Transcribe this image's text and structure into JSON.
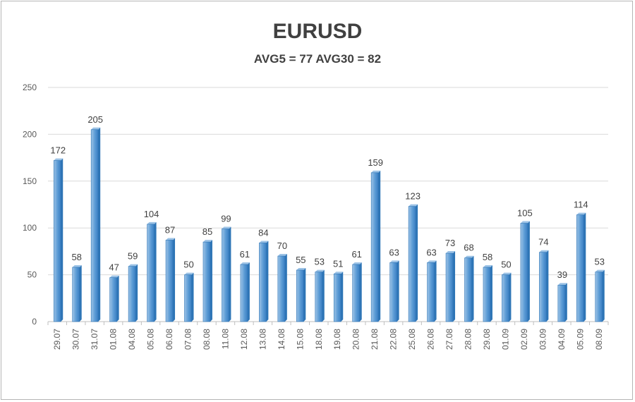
{
  "chart_data": {
    "type": "bar",
    "title": "EURUSD",
    "subtitle": "AVG5 = 77 AVG30 = 82",
    "xlabel": "",
    "ylabel": "",
    "ylim": [
      0,
      250
    ],
    "yticks": [
      0,
      50,
      100,
      150,
      200,
      250
    ],
    "grid": true,
    "legend": "none",
    "categories": [
      "29.07",
      "30.07",
      "31.07",
      "01.08",
      "04.08",
      "05.08",
      "06.08",
      "07.08",
      "08.08",
      "11.08",
      "12.08",
      "13.08",
      "14.08",
      "15.08",
      "18.08",
      "19.08",
      "20.08",
      "21.08",
      "22.08",
      "25.08",
      "26.08",
      "27.08",
      "28.08",
      "29.08",
      "01.09",
      "02.09",
      "03.09",
      "04.09",
      "05.09",
      "08.09"
    ],
    "values": [
      172,
      58,
      205,
      47,
      59,
      104,
      87,
      50,
      85,
      99,
      61,
      84,
      70,
      55,
      53,
      51,
      61,
      159,
      63,
      123,
      63,
      73,
      68,
      58,
      50,
      105,
      74,
      39,
      114,
      53
    ],
    "colors": {
      "bar_light": "#9dc3e6",
      "bar_mid": "#5b9bd5",
      "bar_dark": "#2e75b6",
      "grid": "#d9d9d9",
      "axis": "#bfbfbf"
    }
  }
}
